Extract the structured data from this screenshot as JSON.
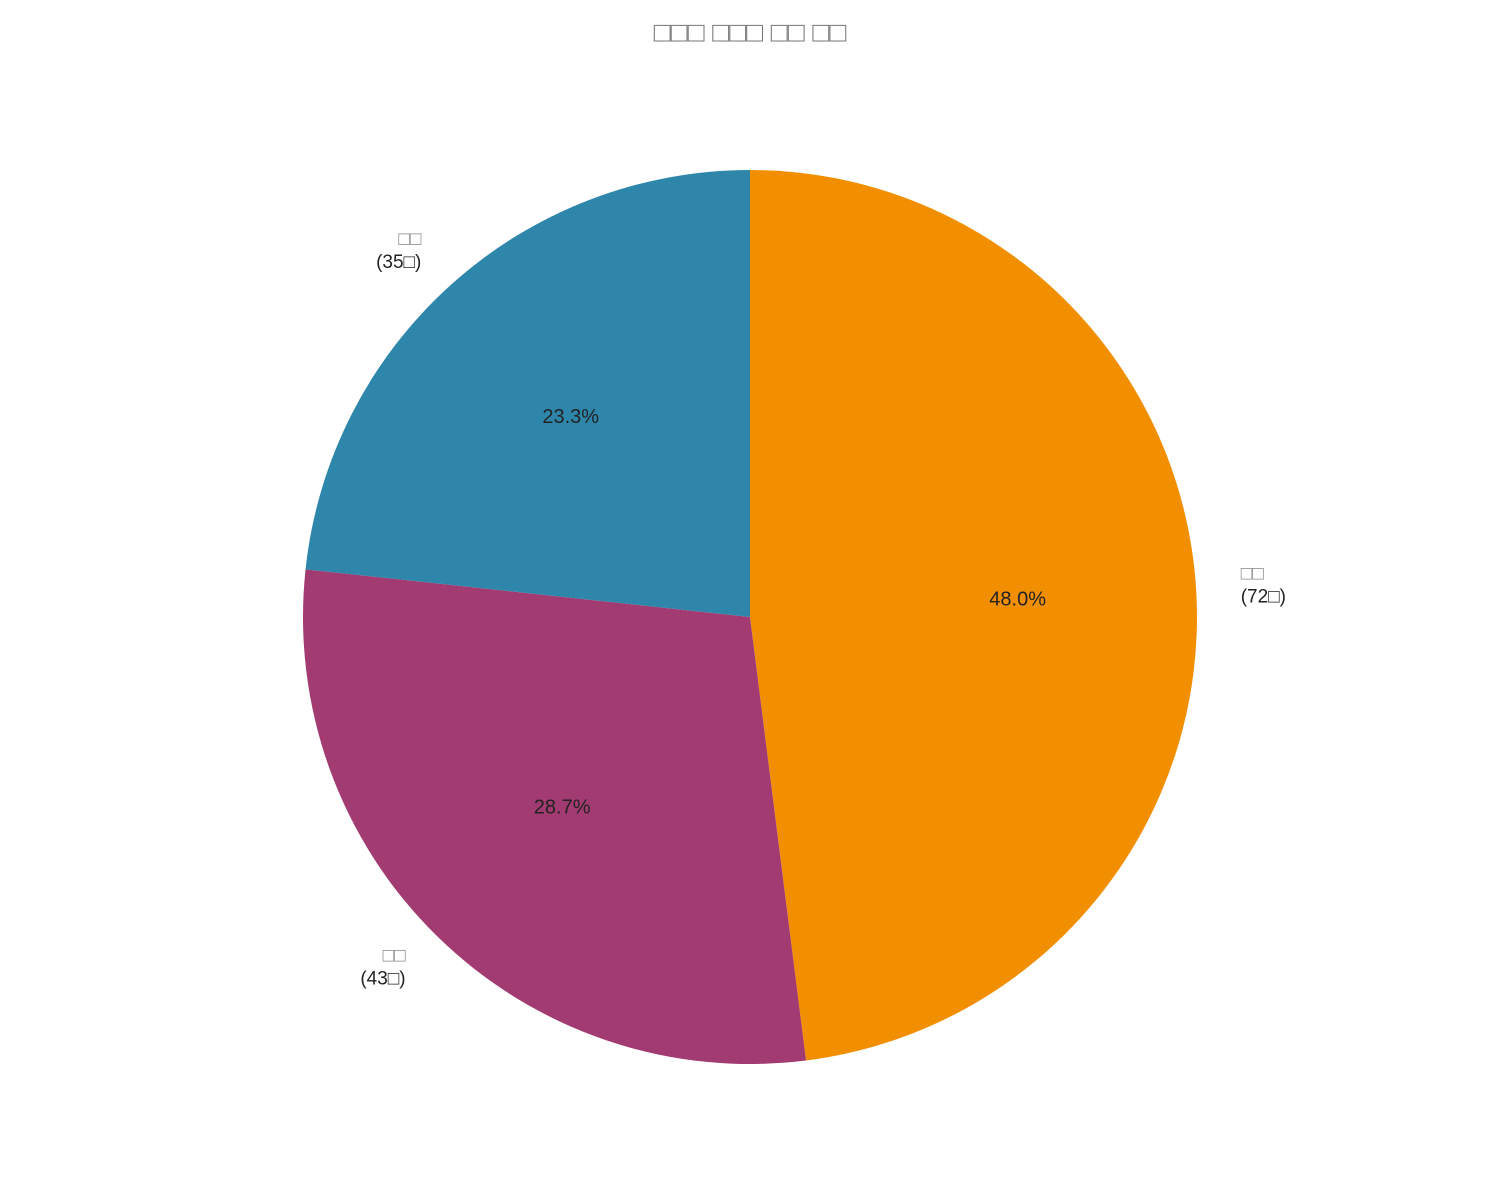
{
  "chart_data": {
    "type": "pie",
    "title": "□□□ □□□ □□ □□",
    "categories": [
      "□□\n(72□)",
      "□□\n(43□)",
      "□□\n(35□)"
    ],
    "values": [
      48.0,
      28.7,
      23.3
    ],
    "value_labels": [
      "48.0%",
      "28.7%",
      "23.3%"
    ],
    "colors": [
      "#F18F01",
      "#A23B72",
      "#2E86AB"
    ]
  }
}
